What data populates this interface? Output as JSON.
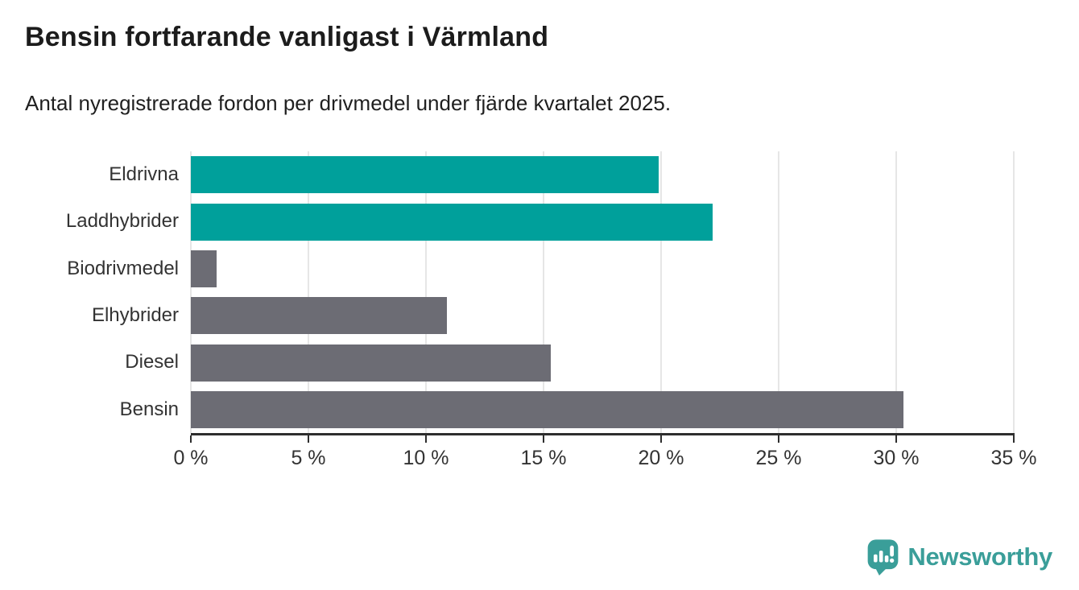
{
  "page": {
    "title": "Bensin fortfarande vanligast i Värmland",
    "subtitle": "Antal nyregistrerade fordon per drivmedel under fjärde kvartalet 2025."
  },
  "chart_data": {
    "type": "bar",
    "orientation": "horizontal",
    "title": "Bensin fortfarande vanligast i Värmland",
    "subtitle": "Antal nyregistrerade fordon per drivmedel under fjärde kvartalet 2025.",
    "categories": [
      "Eldrivna",
      "Laddhybrider",
      "Biodrivmedel",
      "Elhybrider",
      "Diesel",
      "Bensin"
    ],
    "values": [
      19.9,
      22.2,
      1.1,
      10.9,
      15.3,
      30.3
    ],
    "highlighted": [
      true,
      true,
      false,
      false,
      false,
      false
    ],
    "xlabel": "",
    "ylabel": "",
    "xlim": [
      0,
      35
    ],
    "x_ticks": [
      0,
      5,
      10,
      15,
      20,
      25,
      30,
      35
    ],
    "tick_suffix": " %",
    "grid": true,
    "legend": "none",
    "colors": {
      "highlight": "#00a09b",
      "default": "#6c6c74",
      "gridline": "#e6e6e6",
      "axis": "#2e2e2e",
      "text": "#333333"
    }
  },
  "logo": {
    "label": "Newsworthy",
    "icon": "newsworthy-speech-bubble-chart-icon",
    "color": "#3a9e99"
  }
}
